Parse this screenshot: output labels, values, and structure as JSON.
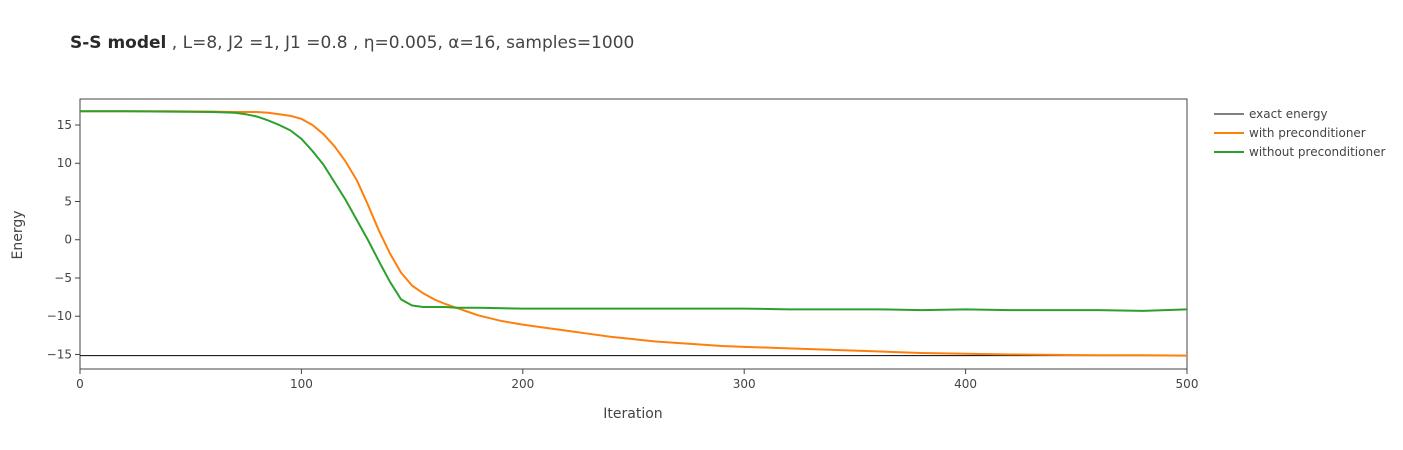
{
  "title": {
    "bold": "S-S model",
    "rest": " , L=8, J2 =1, J1 =0.8 , η=0.005, α=16, samples=1000"
  },
  "chart_data": {
    "type": "line",
    "xlabel": "Iteration",
    "ylabel": "Energy",
    "xlim": [
      0,
      500
    ],
    "ylim": [
      -16.9,
      18.4
    ],
    "xticks": [
      0,
      100,
      200,
      300,
      400,
      500
    ],
    "yticks": [
      15,
      10,
      5,
      0,
      -5,
      -10,
      -15
    ],
    "ytick_labels": [
      "15",
      "10",
      "5",
      "0",
      "−5",
      "−10",
      "−15"
    ],
    "grid": false,
    "legend_position": "right",
    "series": [
      {
        "name": "exact energy",
        "color": "#000000",
        "x": [
          0,
          500
        ],
        "y": [
          -15.15,
          -15.15
        ]
      },
      {
        "name": "with preconditioner",
        "color": "#ff7f0e",
        "x": [
          0,
          20,
          40,
          60,
          70,
          80,
          85,
          90,
          95,
          100,
          105,
          110,
          115,
          120,
          125,
          130,
          135,
          140,
          145,
          150,
          155,
          160,
          165,
          170,
          175,
          180,
          190,
          200,
          210,
          220,
          230,
          240,
          250,
          260,
          270,
          280,
          290,
          300,
          320,
          340,
          360,
          380,
          400,
          420,
          440,
          460,
          480,
          500
        ],
        "y": [
          16.8,
          16.8,
          16.8,
          16.75,
          16.7,
          16.7,
          16.6,
          16.4,
          16.2,
          15.8,
          15.0,
          13.8,
          12.2,
          10.2,
          7.8,
          4.6,
          1.2,
          -1.8,
          -4.3,
          -6.0,
          -7.0,
          -7.8,
          -8.4,
          -8.9,
          -9.4,
          -9.9,
          -10.6,
          -11.1,
          -11.5,
          -11.9,
          -12.3,
          -12.7,
          -13.0,
          -13.3,
          -13.5,
          -13.7,
          -13.9,
          -14.0,
          -14.2,
          -14.4,
          -14.6,
          -14.8,
          -14.9,
          -15.0,
          -15.05,
          -15.1,
          -15.1,
          -15.15
        ]
      },
      {
        "name": "without preconditioner",
        "color": "#2ca02c",
        "x": [
          0,
          20,
          40,
          60,
          70,
          75,
          80,
          85,
          90,
          95,
          100,
          105,
          110,
          115,
          120,
          125,
          130,
          135,
          140,
          145,
          150,
          155,
          160,
          165,
          170,
          180,
          200,
          220,
          240,
          260,
          280,
          300,
          320,
          340,
          360,
          380,
          400,
          420,
          440,
          460,
          480,
          500
        ],
        "y": [
          16.8,
          16.8,
          16.75,
          16.7,
          16.6,
          16.4,
          16.1,
          15.6,
          15.0,
          14.3,
          13.2,
          11.6,
          9.8,
          7.5,
          5.2,
          2.6,
          0.0,
          -2.8,
          -5.5,
          -7.8,
          -8.6,
          -8.8,
          -8.8,
          -8.8,
          -8.9,
          -8.9,
          -9.0,
          -9.0,
          -9.0,
          -9.0,
          -9.0,
          -9.0,
          -9.1,
          -9.1,
          -9.1,
          -9.2,
          -9.1,
          -9.2,
          -9.2,
          -9.2,
          -9.3,
          -9.1
        ]
      }
    ]
  }
}
